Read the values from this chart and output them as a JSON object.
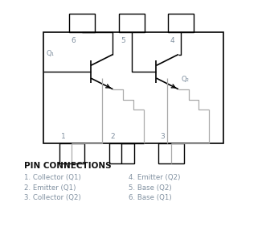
{
  "bg_color": "#ffffff",
  "line_color": "#000000",
  "gray_color": "#aaaaaa",
  "blue_gray": "#8090a0",
  "pin_text_color": "#8090a0",
  "pin_connections_title": "PIN CONNECTIONS",
  "pin_connections": [
    "1. Collector (Q1)",
    "2. Emitter (Q1)",
    "3. Collector (Q2)",
    "4. Emitter (Q2)",
    "5. Base (Q2)",
    "6. Base (Q1)"
  ]
}
